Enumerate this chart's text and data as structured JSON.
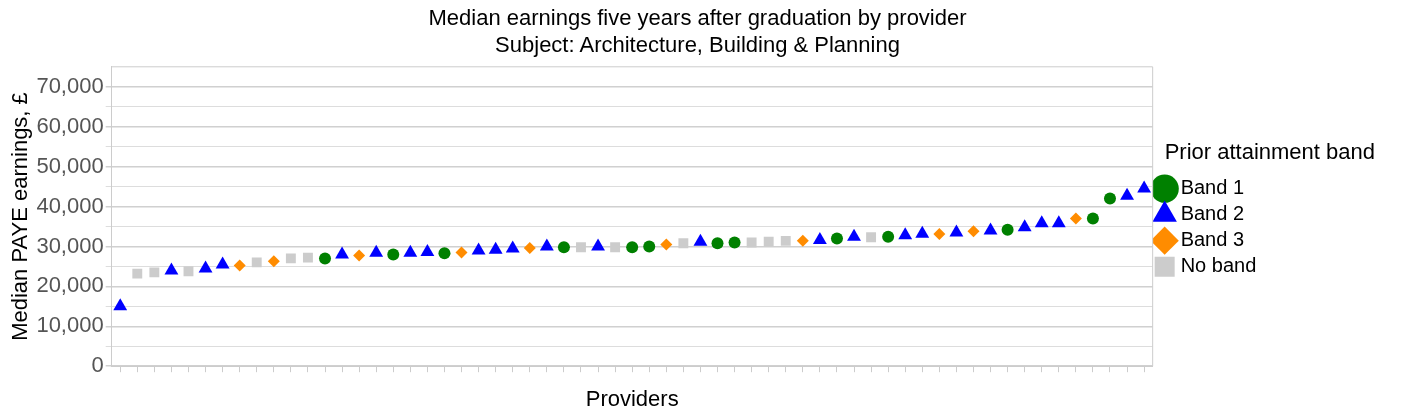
{
  "chart_data": {
    "type": "scatter",
    "title": "Median earnings five years after graduation by provider",
    "subtitle": "Subject: Architecture, Building & Planning",
    "xlabel": "Providers",
    "ylabel": "Median PAYE earnings, £",
    "legend_title": "Prior attainment band",
    "legend": "right",
    "grid": "y",
    "categories": [
      null,
      null,
      null,
      null,
      null,
      null,
      null,
      null,
      null,
      null,
      null,
      null,
      null,
      null,
      null,
      null,
      null,
      null,
      null,
      null,
      null,
      null,
      null,
      null,
      null,
      null,
      null,
      null,
      null,
      null,
      null,
      null,
      null,
      null,
      null,
      null,
      null,
      null,
      null,
      null,
      null,
      null,
      null,
      null,
      null,
      null,
      null,
      null,
      null,
      null,
      null,
      null,
      null,
      null,
      null,
      null,
      null,
      null,
      null,
      null,
      null
    ],
    "ylim": [
      0,
      75000
    ],
    "yticks": [
      0,
      {
        "value": 5000,
        "label": null
      },
      {
        "value": 10000,
        "label": "10,000"
      },
      {
        "value": 15000,
        "label": null
      },
      {
        "value": 20000,
        "label": "20,000"
      },
      {
        "value": 25000,
        "label": null
      },
      {
        "value": 30000,
        "label": "30,000"
      },
      {
        "value": 35000,
        "label": null
      },
      {
        "value": 40000,
        "label": "40,000"
      },
      {
        "value": 45000,
        "label": null
      },
      {
        "value": 50000,
        "label": "50,000"
      },
      {
        "value": 55000,
        "label": null
      },
      {
        "value": 60000,
        "label": "60,000"
      },
      {
        "value": 65000,
        "label": null
      },
      {
        "value": 70000,
        "label": "70,000"
      }
    ],
    "series": [
      {
        "name": "Band 1",
        "color": "#008000",
        "marker": "circle",
        "values": [
          null,
          null,
          null,
          null,
          null,
          null,
          null,
          null,
          null,
          null,
          null,
          null,
          27000,
          null,
          null,
          null,
          28000,
          null,
          null,
          28300,
          null,
          null,
          null,
          null,
          null,
          null,
          29800,
          null,
          null,
          null,
          29800,
          30000,
          null,
          null,
          null,
          30800,
          31000,
          null,
          null,
          null,
          null,
          null,
          32000,
          null,
          null,
          32400,
          null,
          null,
          null,
          null,
          null,
          null,
          34200,
          null,
          null,
          null,
          null,
          37000,
          42000,
          null,
          null
        ]
      },
      {
        "name": "Band 2",
        "color": "#0000ff",
        "marker": "triangle",
        "values": [
          15000,
          null,
          null,
          24000,
          null,
          24500,
          25500,
          null,
          null,
          null,
          null,
          null,
          null,
          28000,
          null,
          28400,
          null,
          28400,
          28600,
          null,
          null,
          29000,
          29200,
          29500,
          null,
          30000,
          null,
          null,
          30000,
          null,
          null,
          null,
          null,
          null,
          31200,
          null,
          null,
          null,
          null,
          null,
          null,
          31600,
          null,
          32400,
          null,
          null,
          32800,
          33200,
          null,
          33500,
          null,
          34000,
          null,
          34800,
          35800,
          35800,
          null,
          null,
          null,
          42700,
          44500
        ]
      },
      {
        "name": "Band 3",
        "color": "#ff8c00",
        "marker": "diamond",
        "values": [
          null,
          null,
          null,
          null,
          null,
          null,
          null,
          25200,
          null,
          26300,
          null,
          null,
          null,
          null,
          27700,
          null,
          null,
          null,
          null,
          null,
          28500,
          null,
          null,
          null,
          29600,
          null,
          null,
          null,
          null,
          null,
          null,
          null,
          30500,
          null,
          null,
          null,
          null,
          null,
          null,
          null,
          31400,
          null,
          null,
          null,
          null,
          null,
          null,
          null,
          33100,
          null,
          33800,
          null,
          null,
          null,
          null,
          null,
          37000,
          null,
          null,
          null,
          null
        ]
      },
      {
        "name": "No band",
        "color": "#cccccc",
        "marker": "square",
        "values": [
          null,
          23200,
          23500,
          null,
          23800,
          null,
          null,
          null,
          26000,
          null,
          27000,
          27200,
          null,
          null,
          null,
          null,
          null,
          null,
          null,
          null,
          null,
          null,
          null,
          null,
          null,
          null,
          null,
          29800,
          null,
          29800,
          null,
          null,
          null,
          30800,
          null,
          null,
          null,
          31000,
          31200,
          31400,
          null,
          null,
          null,
          null,
          32300,
          null,
          null,
          null,
          null,
          null,
          null,
          null,
          null,
          null,
          null,
          null,
          null,
          null,
          null,
          null,
          null
        ]
      }
    ]
  }
}
